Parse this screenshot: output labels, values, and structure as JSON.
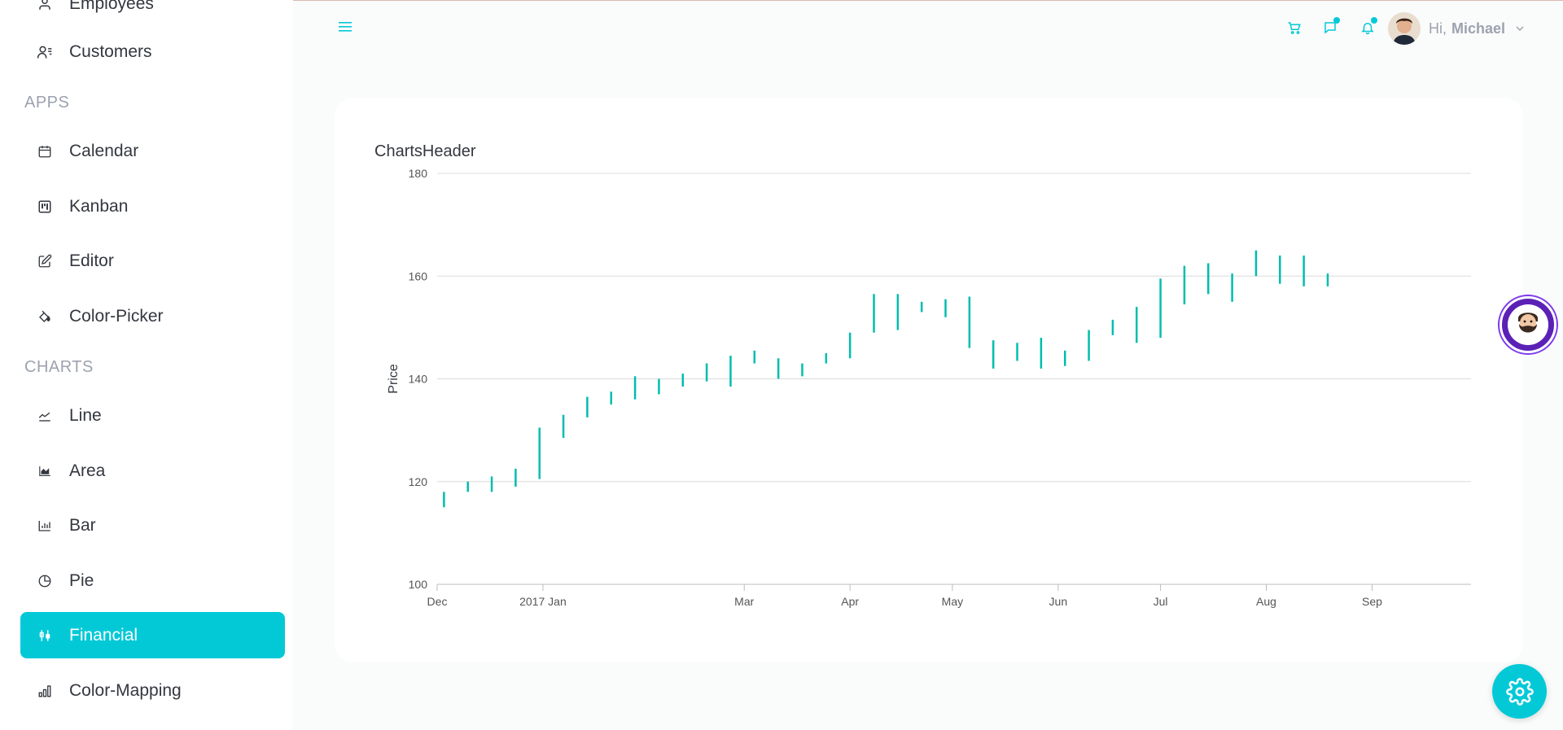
{
  "sidebar": {
    "partial_top_item": "Employees",
    "sections": [
      {
        "label": "APPS"
      },
      {
        "label": "CHARTS"
      }
    ],
    "items": [
      {
        "label": "Customers",
        "icon": "customers-icon"
      },
      {
        "label": "Calendar",
        "icon": "calendar-icon"
      },
      {
        "label": "Kanban",
        "icon": "kanban-icon"
      },
      {
        "label": "Editor",
        "icon": "editor-icon"
      },
      {
        "label": "Color-Picker",
        "icon": "paint-bucket-icon"
      },
      {
        "label": "Line",
        "icon": "line-chart-icon"
      },
      {
        "label": "Area",
        "icon": "area-chart-icon"
      },
      {
        "label": "Bar",
        "icon": "bar-chart-icon"
      },
      {
        "label": "Pie",
        "icon": "pie-chart-icon"
      },
      {
        "label": "Financial",
        "icon": "financial-icon",
        "active": true
      },
      {
        "label": "Color-Mapping",
        "icon": "color-mapping-icon"
      }
    ],
    "active_color": "#03c9d7"
  },
  "header": {
    "greeting": "Hi,",
    "user_name": "Michael",
    "icons": [
      "menu-icon",
      "cart-icon",
      "chat-icon",
      "bell-icon"
    ],
    "accent": "#03c9d7"
  },
  "chart_data": {
    "type": "hilo",
    "title": "ChartsHeader",
    "ylabel": "Price",
    "ylim": [
      100,
      180
    ],
    "yticks": [
      100,
      120,
      140,
      160,
      180
    ],
    "xlim": [
      "2016-12-01",
      "2017-09-30"
    ],
    "xticks": [
      {
        "label": "Dec",
        "date": "2016-12-01"
      },
      {
        "label": "2017 Jan",
        "date": "2017-01-01"
      },
      {
        "label": "Mar",
        "date": "2017-03-01"
      },
      {
        "label": "Apr",
        "date": "2017-04-01"
      },
      {
        "label": "May",
        "date": "2017-05-01"
      },
      {
        "label": "Jun",
        "date": "2017-06-01"
      },
      {
        "label": "Jul",
        "date": "2017-07-01"
      },
      {
        "label": "Aug",
        "date": "2017-08-01"
      },
      {
        "label": "Sep",
        "date": "2017-09-01"
      }
    ],
    "grid": true,
    "series_color": "#00bdae",
    "series": [
      {
        "values": [
          {
            "x": "2016-12-03",
            "low": 115,
            "high": 118
          },
          {
            "x": "2016-12-10",
            "low": 118,
            "high": 120
          },
          {
            "x": "2016-12-17",
            "low": 118,
            "high": 121
          },
          {
            "x": "2016-12-24",
            "low": 119,
            "high": 122.5
          },
          {
            "x": "2016-12-31",
            "low": 120.5,
            "high": 130.5
          },
          {
            "x": "2017-01-07",
            "low": 128.5,
            "high": 133
          },
          {
            "x": "2017-01-14",
            "low": 132.5,
            "high": 136.5
          },
          {
            "x": "2017-01-21",
            "low": 135,
            "high": 137.5
          },
          {
            "x": "2017-01-28",
            "low": 136,
            "high": 140.5
          },
          {
            "x": "2017-02-04",
            "low": 137,
            "high": 140
          },
          {
            "x": "2017-02-11",
            "low": 138.5,
            "high": 141
          },
          {
            "x": "2017-02-18",
            "low": 139.5,
            "high": 143
          },
          {
            "x": "2017-02-25",
            "low": 138.5,
            "high": 144.5
          },
          {
            "x": "2017-03-04",
            "low": 143,
            "high": 145.5
          },
          {
            "x": "2017-03-11",
            "low": 140,
            "high": 144
          },
          {
            "x": "2017-03-18",
            "low": 140.5,
            "high": 143
          },
          {
            "x": "2017-03-25",
            "low": 143,
            "high": 145
          },
          {
            "x": "2017-04-01",
            "low": 144,
            "high": 149
          },
          {
            "x": "2017-04-08",
            "low": 149,
            "high": 156.5
          },
          {
            "x": "2017-04-15",
            "low": 149.5,
            "high": 156.5
          },
          {
            "x": "2017-04-22",
            "low": 153,
            "high": 155
          },
          {
            "x": "2017-04-29",
            "low": 152,
            "high": 155.5
          },
          {
            "x": "2017-05-06",
            "low": 146,
            "high": 156
          },
          {
            "x": "2017-05-13",
            "low": 142,
            "high": 147.5
          },
          {
            "x": "2017-05-20",
            "low": 143.5,
            "high": 147
          },
          {
            "x": "2017-05-27",
            "low": 142,
            "high": 148
          },
          {
            "x": "2017-06-03",
            "low": 142.5,
            "high": 145.5
          },
          {
            "x": "2017-06-10",
            "low": 143.5,
            "high": 149.5
          },
          {
            "x": "2017-06-17",
            "low": 148.5,
            "high": 151.5
          },
          {
            "x": "2017-06-24",
            "low": 147,
            "high": 154
          },
          {
            "x": "2017-07-01",
            "low": 148,
            "high": 159.5
          },
          {
            "x": "2017-07-08",
            "low": 154.5,
            "high": 162
          },
          {
            "x": "2017-07-15",
            "low": 156.5,
            "high": 162.5
          },
          {
            "x": "2017-07-22",
            "low": 155,
            "high": 160.5
          },
          {
            "x": "2017-07-29",
            "low": 160,
            "high": 165
          },
          {
            "x": "2017-08-05",
            "low": 158.5,
            "high": 164
          },
          {
            "x": "2017-08-12",
            "low": 158,
            "high": 164
          },
          {
            "x": "2017-08-19",
            "low": 158,
            "high": 160.5
          }
        ]
      }
    ]
  }
}
